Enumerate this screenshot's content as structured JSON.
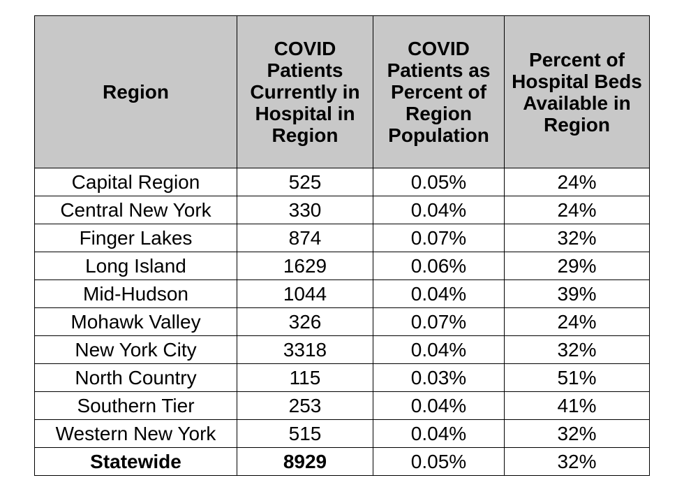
{
  "table": {
    "headers": [
      "Region",
      "COVID Patients Currently in Hospital in Region",
      "COVID Patients as Percent of Region Population",
      "Percent of Hospital Beds Available in Region"
    ],
    "rows": [
      [
        "Capital Region",
        "525",
        "0.05%",
        "24%"
      ],
      [
        "Central New York",
        "330",
        "0.04%",
        "24%"
      ],
      [
        "Finger Lakes",
        "874",
        "0.07%",
        "32%"
      ],
      [
        "Long Island",
        "1629",
        "0.06%",
        "29%"
      ],
      [
        "Mid-Hudson",
        "1044",
        "0.04%",
        "39%"
      ],
      [
        "Mohawk Valley",
        "326",
        "0.07%",
        "24%"
      ],
      [
        "New York City",
        "3318",
        "0.04%",
        "32%"
      ],
      [
        "North Country",
        "115",
        "0.03%",
        "51%"
      ],
      [
        "Southern Tier",
        "253",
        "0.04%",
        "41%"
      ],
      [
        "Western New York",
        "515",
        "0.04%",
        "32%"
      ]
    ],
    "total": [
      "Statewide",
      "8929",
      "0.05%",
      "32%"
    ]
  }
}
